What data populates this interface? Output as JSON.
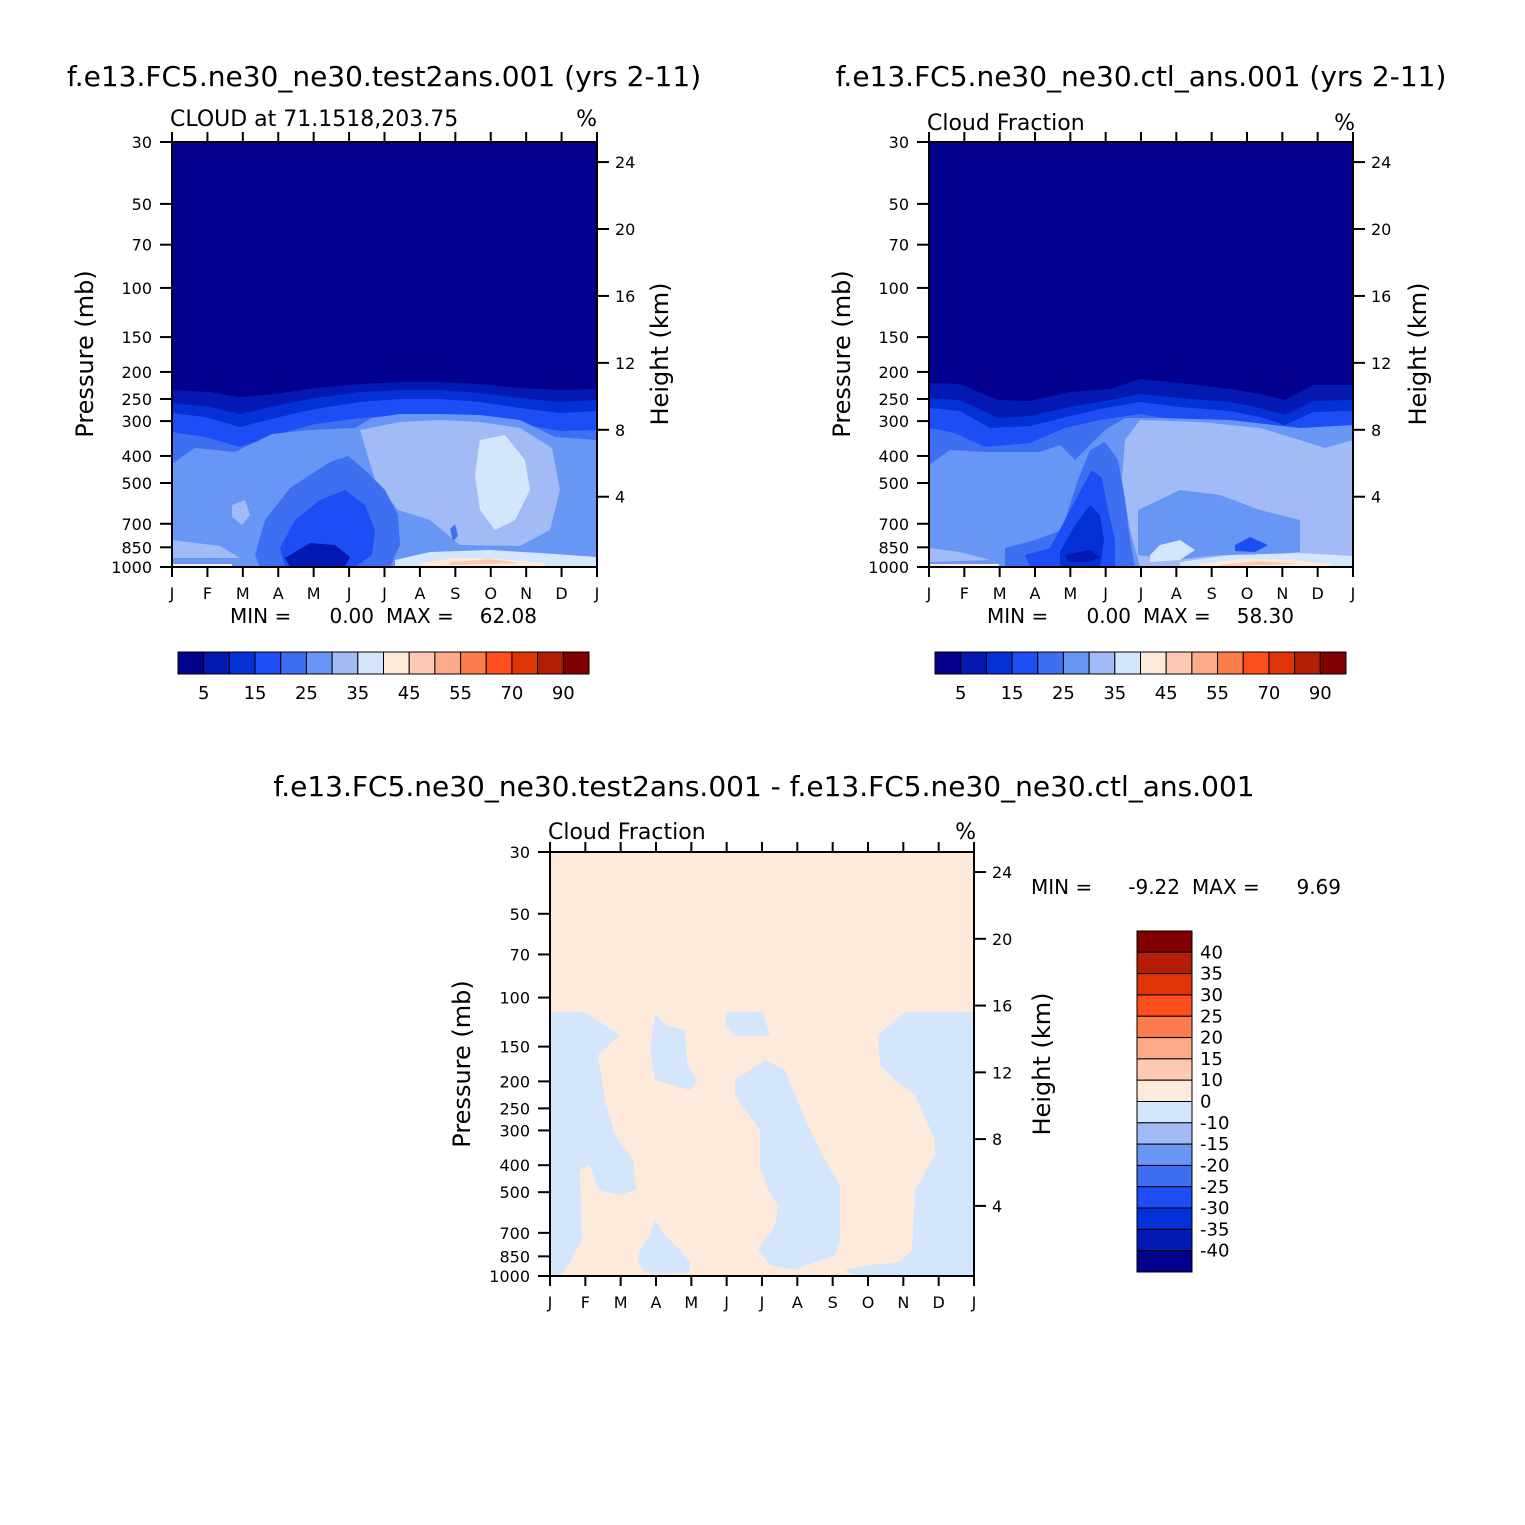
{
  "palette": {
    "abs": [
      "#03008d",
      "#0319b2",
      "#0431d6",
      "#1c4df5",
      "#3e6ff0",
      "#6896f4",
      "#a2baf5",
      "#d4e6fc",
      "#feeadb",
      "#fdc9b2",
      "#fdaa88",
      "#fd7c4c",
      "#fd4e1e",
      "#de3408",
      "#b21f06",
      "#820000"
    ],
    "diff": [
      "#03008d",
      "#0319b2",
      "#0431d6",
      "#1c4df5",
      "#3e6ff0",
      "#6896f4",
      "#a2baf5",
      "#d4e6fc",
      "#feeadb",
      "#fdc9b2",
      "#fdaa88",
      "#fd7c4c",
      "#fd4e1e",
      "#de3408",
      "#b21f06",
      "#820000"
    ]
  },
  "chart_data": [
    {
      "type": "heatmap",
      "id": "test",
      "title": "f.e13.FC5.ne30_ne30.test2ans.001 (yrs 2-11)",
      "subtitle": "CLOUD at 71.1518,203.75",
      "units": "%",
      "ylabel": "Pressure (mb)",
      "y2label": "Height (km)",
      "x_ticks": [
        "J",
        "F",
        "M",
        "A",
        "M",
        "J",
        "J",
        "A",
        "S",
        "O",
        "N",
        "D",
        "J"
      ],
      "pressure_ticks": [
        30,
        50,
        70,
        100,
        150,
        200,
        250,
        300,
        400,
        500,
        700,
        850,
        1000
      ],
      "height_ticks": [
        4,
        8,
        12,
        16,
        20,
        24
      ],
      "min_label": "MIN =",
      "min_value": "0.00",
      "max_label": "MAX =",
      "max_value": "62.08",
      "colorbar_labels": [
        "5",
        "15",
        "25",
        "35",
        "45",
        "55",
        "70",
        "90"
      ]
    },
    {
      "type": "heatmap",
      "id": "ctl",
      "title": "f.e13.FC5.ne30_ne30.ctl_ans.001 (yrs 2-11)",
      "subtitle": "Cloud Fraction",
      "units": "%",
      "ylabel": "Pressure (mb)",
      "y2label": "Height (km)",
      "x_ticks": [
        "J",
        "F",
        "M",
        "A",
        "M",
        "J",
        "J",
        "A",
        "S",
        "O",
        "N",
        "D",
        "J"
      ],
      "pressure_ticks": [
        30,
        50,
        70,
        100,
        150,
        200,
        250,
        300,
        400,
        500,
        700,
        850,
        1000
      ],
      "height_ticks": [
        4,
        8,
        12,
        16,
        20,
        24
      ],
      "min_label": "MIN =",
      "min_value": "0.00",
      "max_label": "MAX =",
      "max_value": "58.30",
      "colorbar_labels": [
        "5",
        "15",
        "25",
        "35",
        "45",
        "55",
        "70",
        "90"
      ]
    },
    {
      "type": "heatmap",
      "id": "diff",
      "title": "f.e13.FC5.ne30_ne30.test2ans.001 - f.e13.FC5.ne30_ne30.ctl_ans.001",
      "subtitle": "Cloud Fraction",
      "units": "%",
      "ylabel": "Pressure (mb)",
      "y2label": "Height (km)",
      "x_ticks": [
        "J",
        "F",
        "M",
        "A",
        "M",
        "J",
        "J",
        "A",
        "S",
        "O",
        "N",
        "D",
        "J"
      ],
      "pressure_ticks": [
        30,
        50,
        70,
        100,
        150,
        200,
        250,
        300,
        400,
        500,
        700,
        850,
        1000
      ],
      "height_ticks": [
        4,
        8,
        12,
        16,
        20,
        24
      ],
      "min_label": "MIN =",
      "min_value": "-9.22",
      "max_label": "MAX =",
      "max_value": "9.69",
      "colorbar_labels": [
        "40",
        "35",
        "30",
        "25",
        "20",
        "15",
        "10",
        "0",
        "-10",
        "-15",
        "-20",
        "-25",
        "-30",
        "-35",
        "-40"
      ]
    }
  ]
}
